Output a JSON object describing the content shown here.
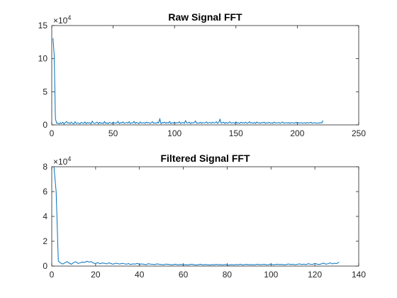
{
  "chart_data": [
    {
      "type": "line",
      "title": "Raw Signal FFT",
      "xlabel": "",
      "ylabel": "",
      "xlim": [
        0,
        250
      ],
      "ylim": [
        0,
        150000
      ],
      "x_ticks": [
        0,
        50,
        100,
        150,
        200,
        250
      ],
      "y_ticks": [
        0,
        5,
        10,
        15
      ],
      "y_exponent": {
        "base": "×10",
        "power": "4"
      },
      "grid": false,
      "series": [
        {
          "color": "#0072BD",
          "x": [
            1,
            2,
            3,
            4,
            5,
            6,
            7,
            8,
            9,
            10,
            11,
            12,
            13,
            14,
            15,
            16,
            17,
            18,
            19,
            20,
            21,
            22,
            23,
            24,
            25,
            26,
            27,
            28,
            29,
            30,
            31,
            32,
            33,
            34,
            35,
            36,
            37,
            38,
            39,
            40,
            41,
            42,
            43,
            44,
            45,
            46,
            47,
            48,
            49,
            50,
            51,
            52,
            53,
            54,
            55,
            56,
            57,
            58,
            59,
            60,
            61,
            62,
            63,
            64,
            65,
            66,
            67,
            68,
            69,
            70,
            71,
            72,
            73,
            74,
            75,
            76,
            77,
            78,
            79,
            80,
            81,
            82,
            83,
            84,
            85,
            86,
            87,
            88,
            89,
            90,
            91,
            92,
            93,
            94,
            95,
            96,
            97,
            98,
            99,
            100,
            101,
            102,
            103,
            104,
            105,
            106,
            107,
            108,
            109,
            110,
            111,
            112,
            113,
            114,
            115,
            116,
            117,
            118,
            119,
            120,
            121,
            122,
            123,
            124,
            125,
            126,
            127,
            128,
            129,
            130,
            131,
            132,
            133,
            134,
            135,
            136,
            137,
            138,
            139,
            140,
            141,
            142,
            143,
            144,
            145,
            146,
            147,
            148,
            149,
            150,
            151,
            152,
            153,
            154,
            155,
            156,
            157,
            158,
            159,
            160,
            161,
            162,
            163,
            164,
            165,
            166,
            167,
            168,
            169,
            170,
            171,
            172,
            173,
            174,
            175,
            176,
            177,
            178,
            179,
            180,
            181,
            182,
            183,
            184,
            185,
            186,
            187,
            188,
            189,
            190,
            191,
            192,
            193,
            194,
            195,
            196,
            197,
            198,
            199,
            200,
            201,
            202,
            203,
            204,
            205,
            206,
            207,
            208,
            209,
            210,
            211,
            212,
            213,
            214,
            215,
            216,
            217,
            218,
            219,
            220,
            221
          ],
          "y": [
            131000,
            105000,
            9000,
            2500,
            2800,
            1500,
            3200,
            2100,
            4000,
            1200,
            3500,
            5000,
            2600,
            3300,
            1900,
            4200,
            2200,
            1700,
            4800,
            2100,
            3000,
            2500,
            1600,
            3900,
            2800,
            2300,
            4500,
            1800,
            3600,
            2600,
            3300,
            1500,
            5600,
            2700,
            2000,
            3100,
            4100,
            1700,
            3900,
            2400,
            3000,
            2200,
            5000,
            2100,
            3200,
            1800,
            3800,
            2900,
            2100,
            4200,
            2500,
            3100,
            2700,
            5300,
            1900,
            3400,
            2800,
            4400,
            2100,
            3000,
            3600,
            2400,
            4800,
            2000,
            3200,
            2700,
            5200,
            2200,
            3700,
            2900,
            1800,
            4400,
            2600,
            3100,
            3500,
            2300,
            4100,
            2900,
            3600,
            2000,
            3200,
            4800,
            2500,
            3000,
            2200,
            4100,
            2900,
            9000,
            1800,
            3500,
            2900,
            4300,
            2200,
            3700,
            2600,
            5200,
            2000,
            3300,
            2700,
            4100,
            2500,
            3600,
            2900,
            4800,
            2100,
            3200,
            3700,
            2300,
            6400,
            2700,
            3000,
            4200,
            1900,
            3500,
            2800,
            3300,
            5800,
            2400,
            3000,
            2600,
            4000,
            2200,
            3700,
            2900,
            3100,
            4600,
            2300,
            3300,
            3700,
            2400,
            4100,
            2800,
            3000,
            4900,
            2200,
            3500,
            8400,
            2600,
            3200,
            3900,
            2100,
            3700,
            2500,
            3200,
            4600,
            2700,
            3000,
            3600,
            2300,
            4500,
            2800,
            3300,
            2100,
            4000,
            2900,
            3400,
            2600,
            4100,
            2200,
            3000,
            4700,
            2800,
            3300,
            2500,
            3600,
            2100,
            4300,
            2900,
            3100,
            2400,
            3700,
            3000,
            4100,
            2300,
            3300,
            2700,
            3900,
            2600,
            3100,
            2400,
            4200,
            2700,
            3300,
            2900,
            3700,
            2300,
            3100,
            4400,
            2600,
            3000,
            3300,
            2700,
            3500,
            2200,
            3600,
            2900,
            3100,
            2600,
            3900,
            2300,
            3200,
            2900,
            3500,
            2600,
            3000,
            3300,
            2400,
            3700,
            2800,
            3100,
            4100,
            2500,
            3000,
            3300,
            2800,
            2500,
            3000,
            2700,
            3400,
            2900,
            6500
          ]
        }
      ]
    },
    {
      "type": "line",
      "title": "Filtered Signal FFT",
      "xlabel": "",
      "ylabel": "",
      "xlim": [
        0,
        140
      ],
      "ylim": [
        0,
        80000
      ],
      "x_ticks": [
        0,
        20,
        40,
        60,
        80,
        100,
        120,
        140
      ],
      "y_ticks": [
        0,
        2,
        4,
        6,
        8
      ],
      "y_exponent": {
        "base": "×10",
        "power": "4"
      },
      "grid": false,
      "series": [
        {
          "color": "#0072BD",
          "x": [
            1,
            2,
            3,
            4,
            5,
            6,
            7,
            8,
            9,
            10,
            11,
            12,
            13,
            14,
            15,
            16,
            17,
            18,
            19,
            20,
            21,
            22,
            23,
            24,
            25,
            26,
            27,
            28,
            29,
            30,
            31,
            32,
            33,
            34,
            35,
            36,
            37,
            38,
            39,
            40,
            41,
            42,
            43,
            44,
            45,
            46,
            47,
            48,
            49,
            50,
            51,
            52,
            53,
            54,
            55,
            56,
            57,
            58,
            59,
            60,
            61,
            62,
            63,
            64,
            65,
            66,
            67,
            68,
            69,
            70,
            71,
            72,
            73,
            74,
            75,
            76,
            77,
            78,
            79,
            80,
            81,
            82,
            83,
            84,
            85,
            86,
            87,
            88,
            89,
            90,
            91,
            92,
            93,
            94,
            95,
            96,
            97,
            98,
            99,
            100,
            101,
            102,
            103,
            104,
            105,
            106,
            107,
            108,
            109,
            110,
            111,
            112,
            113,
            114,
            115,
            116,
            117,
            118,
            119,
            120,
            121,
            122,
            123,
            124,
            125,
            126,
            127,
            128,
            129,
            130,
            131
          ],
          "y": [
            80000,
            60000,
            4000,
            2500,
            1600,
            2700,
            3600,
            2200,
            1500,
            2900,
            3500,
            2100,
            2600,
            3300,
            2900,
            3900,
            3200,
            3600,
            2400,
            2000,
            2800,
            1800,
            2500,
            2200,
            1700,
            2600,
            2000,
            1500,
            2300,
            2100,
            1600,
            2200,
            1900,
            1500,
            2000,
            1300,
            1800,
            1600,
            2100,
            1400,
            1700,
            1500,
            1100,
            1900,
            1600,
            1400,
            1200,
            1800,
            1500,
            1300,
            1100,
            1600,
            1400,
            1200,
            1000,
            1500,
            1300,
            1100,
            1400,
            900,
            1200,
            1000,
            1300,
            1500,
            1100,
            900,
            1200,
            1400,
            1000,
            1300,
            1100,
            900,
            1200,
            1000,
            1400,
            1100,
            1200,
            1000,
            1300,
            1100,
            900,
            1200,
            1000,
            1300,
            1100,
            1500,
            1000,
            1200,
            1400,
            1100,
            1300,
            1000,
            1200,
            1500,
            1100,
            1300,
            1400,
            1000,
            1200,
            1600,
            1100,
            1300,
            1500,
            1200,
            1400,
            1000,
            1300,
            1700,
            1200,
            1500,
            1100,
            1400,
            1800,
            1300,
            1600,
            1200,
            1900,
            1500,
            1400,
            2100,
            1600,
            1300,
            1800,
            2400,
            1500,
            1900,
            2600,
            1700,
            2300,
            2000,
            3200
          ]
        }
      ]
    }
  ]
}
